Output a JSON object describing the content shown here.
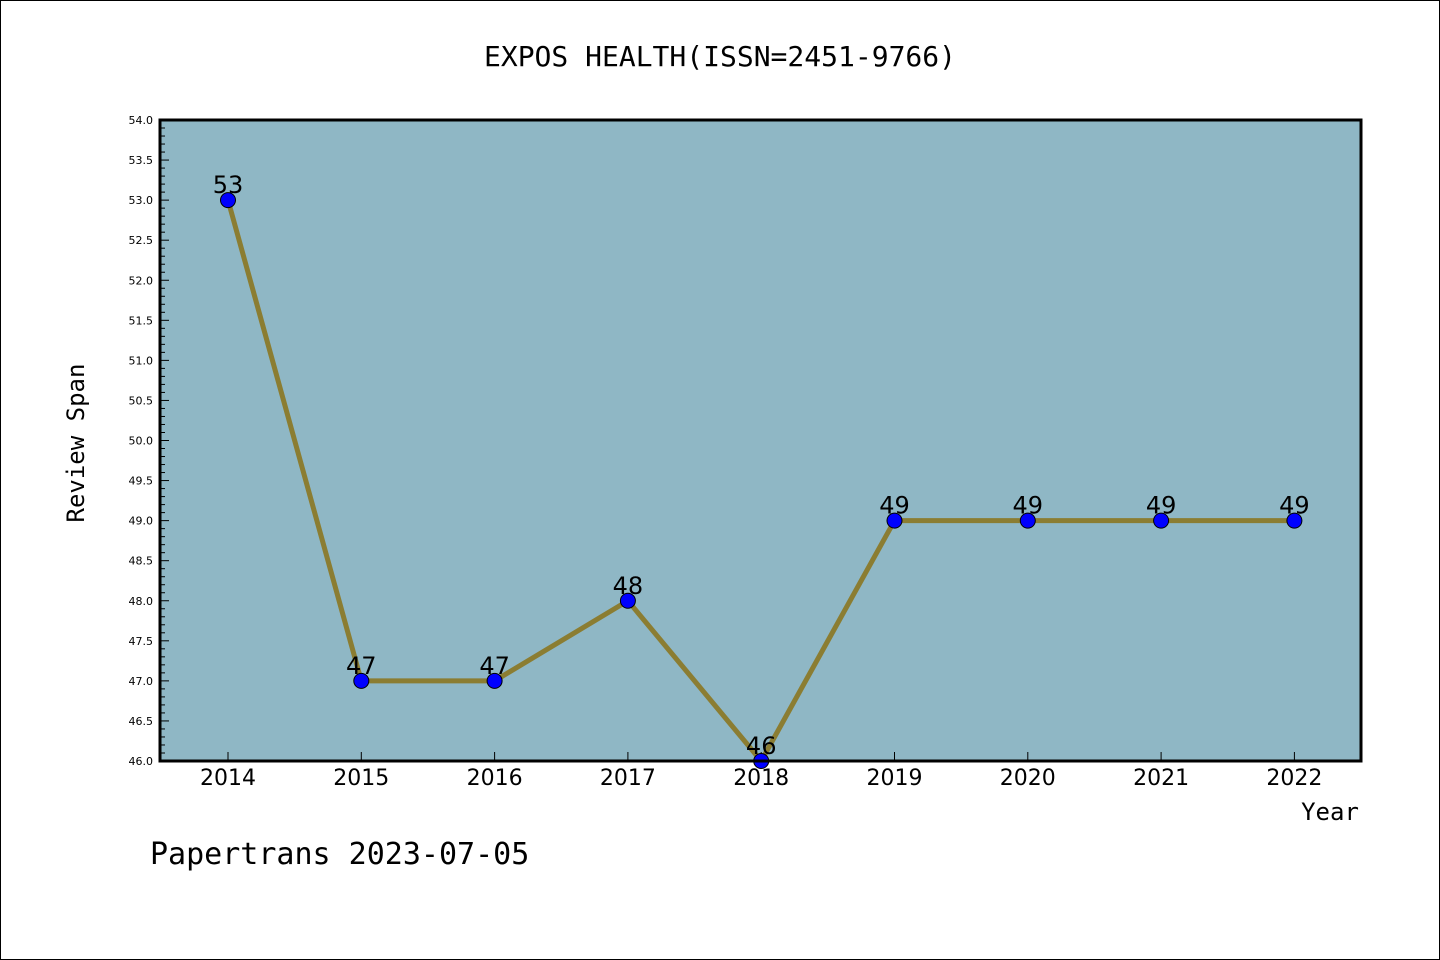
{
  "chart_data": {
    "type": "line",
    "title": "EXPOS HEALTH(ISSN=2451-9766)",
    "xlabel": "Year",
    "ylabel": "Review Span",
    "categories": [
      "2014",
      "2015",
      "2016",
      "2017",
      "2018",
      "2019",
      "2020",
      "2021",
      "2022"
    ],
    "values": [
      53,
      47,
      47,
      48,
      46,
      49,
      49,
      49,
      49
    ],
    "ylim": [
      46.0,
      54.0
    ],
    "ytick_step": 0.5,
    "grid": false,
    "colors": {
      "plot_background": "#8fb7c5",
      "line": "#8b7d32",
      "marker": "#0000ff"
    }
  },
  "footer": "Papertrans 2023-07-05"
}
